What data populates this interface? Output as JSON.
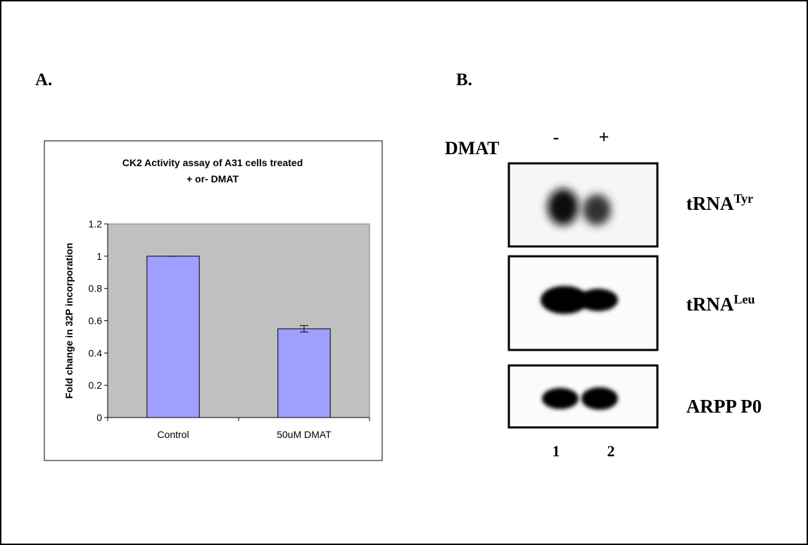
{
  "chart_data": {
    "type": "bar",
    "title": "CK2 Activity assay of A31 cells treated\n+ or- DMAT",
    "y_label": "Fold change in 32P incorporation",
    "categories": [
      "Control",
      "50uM DMAT"
    ],
    "values": [
      1,
      0.55
    ],
    "errors": [
      0,
      0.02
    ],
    "color": "#9f9fff",
    "ylim": [
      0,
      1.2
    ],
    "yticks": [
      0,
      0.2,
      0.4,
      0.6,
      0.8,
      1,
      1.2
    ],
    "plot_background": "#c0c0c0"
  },
  "panels": {
    "a": "A.",
    "b": "B."
  },
  "blot": {
    "treatment": "DMAT",
    "lane_signs": [
      "-",
      "+"
    ],
    "rows": [
      {
        "base": "tRNA",
        "sup": "Tyr"
      },
      {
        "base": "tRNA",
        "sup": "Leu"
      },
      {
        "base": "ARPP P0"
      }
    ],
    "lane_numbers": [
      "1",
      "2"
    ]
  }
}
